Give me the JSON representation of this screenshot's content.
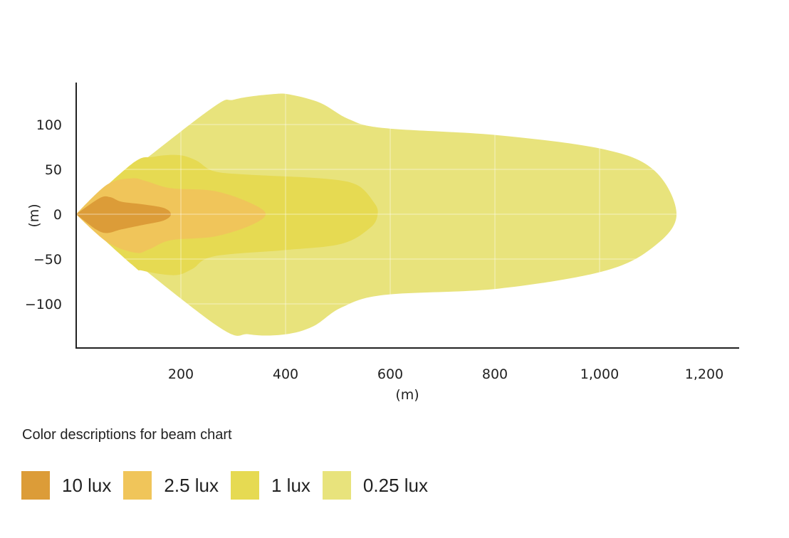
{
  "chart_data": {
    "type": "area",
    "xlabel": "(m)",
    "ylabel": "(m)",
    "xlim": [
      0,
      1265
    ],
    "ylim": [
      -149,
      146
    ],
    "x_ticks": [
      200,
      400,
      600,
      800,
      1000,
      1200
    ],
    "x_tick_labels": [
      "200",
      "400",
      "600",
      "800",
      "1,000",
      "1,200"
    ],
    "y_ticks": [
      100,
      50,
      0,
      -50,
      -100
    ],
    "y_tick_labels": [
      "100",
      "50",
      "0",
      "−50",
      "−100"
    ],
    "grid": true,
    "legend_title": "Color descriptions for beam chart",
    "legend_placement": "bottom",
    "series": [
      {
        "name": "0.25 lux",
        "color": "#e8e37c",
        "points": [
          [
            0,
            0
          ],
          [
            249,
            114
          ],
          [
            303,
            128
          ],
          [
            378,
            134
          ],
          [
            412,
            133
          ],
          [
            467,
            124
          ],
          [
            521,
            106
          ],
          [
            589,
            96
          ],
          [
            807,
            88
          ],
          [
            1011,
            72
          ],
          [
            1106,
            48
          ],
          [
            1147,
            0
          ],
          [
            1106,
            -35
          ],
          [
            1011,
            -63
          ],
          [
            807,
            -83
          ],
          [
            589,
            -90
          ],
          [
            507,
            -104
          ],
          [
            453,
            -125
          ],
          [
            399,
            -134
          ],
          [
            331,
            -134
          ],
          [
            263,
            -122
          ]
        ]
      },
      {
        "name": "1 lux",
        "color": "#e6da52",
        "points": [
          [
            0,
            0
          ],
          [
            106,
            56
          ],
          [
            147,
            64
          ],
          [
            195,
            66
          ],
          [
            229,
            60
          ],
          [
            263,
            48
          ],
          [
            331,
            44
          ],
          [
            467,
            40
          ],
          [
            535,
            33
          ],
          [
            569,
            13
          ],
          [
            576,
            0
          ],
          [
            562,
            -15
          ],
          [
            507,
            -33
          ],
          [
            399,
            -40
          ],
          [
            263,
            -47
          ],
          [
            222,
            -61
          ],
          [
            188,
            -68
          ],
          [
            127,
            -63
          ],
          [
            106,
            -56
          ]
        ]
      },
      {
        "name": "2.5 lux",
        "color": "#f0c55a",
        "points": [
          [
            0,
            0
          ],
          [
            59,
            33
          ],
          [
            106,
            40
          ],
          [
            133,
            37
          ],
          [
            181,
            29
          ],
          [
            263,
            26
          ],
          [
            331,
            13
          ],
          [
            362,
            0
          ],
          [
            331,
            -13
          ],
          [
            263,
            -25
          ],
          [
            181,
            -29
          ],
          [
            140,
            -39
          ],
          [
            113,
            -43
          ],
          [
            59,
            -31
          ]
        ]
      },
      {
        "name": "10 lux",
        "color": "#dc9c38",
        "points": [
          [
            0,
            0
          ],
          [
            45,
            18
          ],
          [
            65,
            19
          ],
          [
            86,
            14
          ],
          [
            127,
            11
          ],
          [
            167,
            7
          ],
          [
            181,
            0
          ],
          [
            167,
            -7
          ],
          [
            127,
            -12
          ],
          [
            86,
            -17
          ],
          [
            59,
            -21
          ],
          [
            38,
            -17
          ]
        ]
      }
    ]
  }
}
